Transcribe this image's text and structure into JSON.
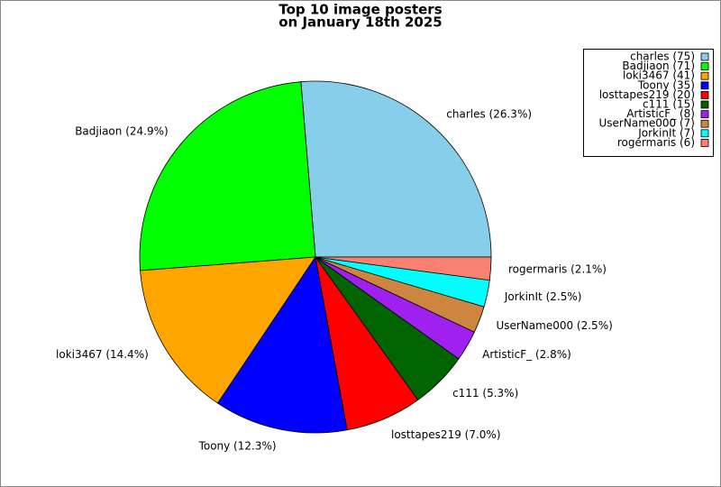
{
  "chart_data": {
    "type": "pie",
    "title_lines": [
      "Top 10 image posters",
      "on January 18th 2025"
    ],
    "categories": [
      "charles",
      "Badjiaon",
      "loki3467",
      "Toony",
      "losttapes219",
      "c111",
      "ArtisticF_",
      "UserName000",
      "JorkinIt",
      "rogermaris"
    ],
    "values": [
      75,
      71,
      41,
      35,
      20,
      15,
      8,
      7,
      7,
      6
    ],
    "slice_labels": [
      "charles (26.3%)",
      "Badjiaon (24.9%)",
      "loki3467 (14.4%)",
      "Toony (12.3%)",
      "losttapes219 (7.0%)",
      "c111 (5.3%)",
      "ArtisticF_ (2.8%)",
      "UserName000 (2.5%)",
      "JorkinIt (2.5%)",
      "rogermaris (2.1%)"
    ],
    "legend_labels": [
      "charles (75)",
      "Badjiaon (71)",
      "loki3467 (41)",
      "Toony (35)",
      "losttapes219 (20)",
      "c111 (15)",
      "ArtisticF_  (8)",
      "UserName000 (7)",
      "JorkinIt (7)",
      "rogermaris (6)"
    ],
    "colors": [
      "#87ceeb",
      "#00ff00",
      "#ffa500",
      "#0000ff",
      "#ff0000",
      "#006400",
      "#a020f0",
      "#cd853f",
      "#00ffff",
      "#fa8072"
    ],
    "legend_position": "upper right"
  }
}
